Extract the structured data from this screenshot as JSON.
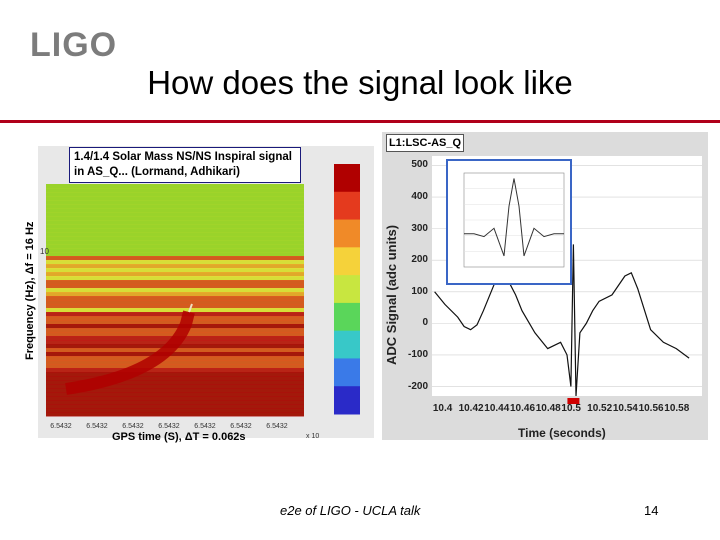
{
  "slide": {
    "logo_text": "LIGO",
    "title": "How does the signal look like",
    "footer_center": "e2e of LIGO - UCLA talk",
    "page_number": "14",
    "accent_color": "#b0001a"
  },
  "spectrogram": {
    "caption": "1.4/1.4 Solar Mass NS/NS Inspiral signal in AS_Q... (Lormand, Adhikari)",
    "ylabel": "Frequency (Hz), Δf = 16 Hz",
    "xlabel": "GPS time (S), ΔT = 0.062s",
    "y_tick": "10",
    "x_ticks": [
      "6.5432",
      "6.5432",
      "6.5432",
      "6.5432",
      "6.5432",
      "6.5432",
      "6.5432"
    ],
    "x_exponent": "x 10"
  },
  "adc_plot": {
    "channel_label": "L1:LSC-AS_Q",
    "ylabel": "ADC Signal (adc units)",
    "xlabel": "Time (seconds)",
    "y_ticks": [
      "500",
      "400",
      "300",
      "200",
      "100",
      "0",
      "-100",
      "-200"
    ],
    "x_ticks": [
      "10.4",
      "10.42",
      "10.44",
      "10.46",
      "10.48",
      "10.5",
      "10.52",
      "10.54",
      "10.56",
      "10.58"
    ]
  },
  "chart_data": [
    {
      "type": "heatmap",
      "title": "1.4/1.4 Solar Mass NS/NS Inspiral signal in AS_Q... (Lormand, Adhikari)",
      "xlabel": "GPS time (S), ΔT = 0.062s",
      "ylabel": "Frequency (Hz), Δf = 16 Hz",
      "x_tick_labels": [
        "6.5432",
        "6.5432",
        "6.5432",
        "6.5432",
        "6.5432",
        "6.5432",
        "6.5432"
      ]
    },
    {
      "type": "line",
      "title": "L1:LSC-AS_Q",
      "xlabel": "Time (seconds)",
      "ylabel": "ADC Signal (adc units)",
      "xlim": [
        10.39,
        10.6
      ],
      "ylim": [
        -230,
        530
      ],
      "x": [
        10.392,
        10.4,
        10.41,
        10.415,
        10.42,
        10.425,
        10.43,
        10.44,
        10.45,
        10.455,
        10.46,
        10.47,
        10.48,
        10.49,
        10.495,
        10.498,
        10.5,
        10.502,
        10.505,
        10.51,
        10.515,
        10.52,
        10.53,
        10.54,
        10.545,
        10.55,
        10.56,
        10.57,
        10.58,
        10.59
      ],
      "y": [
        100,
        60,
        20,
        -10,
        -20,
        -5,
        40,
        140,
        130,
        90,
        40,
        -30,
        -80,
        -60,
        -100,
        -200,
        250,
        -230,
        -30,
        0,
        40,
        70,
        90,
        150,
        160,
        110,
        -20,
        -60,
        -80,
        -110
      ]
    },
    {
      "type": "line",
      "title": "inset",
      "x": [
        0,
        10,
        20,
        30,
        40,
        45,
        50,
        55,
        60,
        70,
        80,
        90,
        100
      ],
      "y": [
        0,
        0,
        -0.05,
        0.1,
        -0.4,
        0.5,
        1.0,
        0.5,
        -0.4,
        0.1,
        -0.05,
        0,
        0
      ]
    }
  ]
}
